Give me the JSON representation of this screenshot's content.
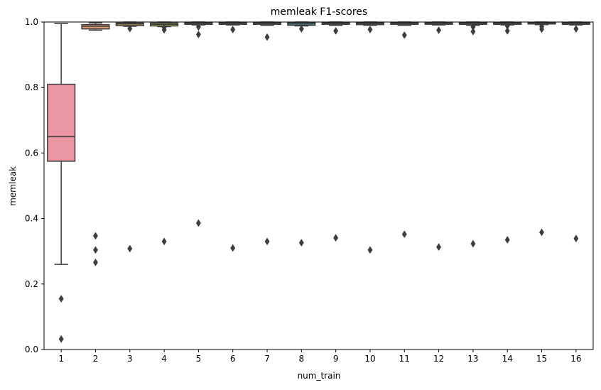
{
  "chart_data": {
    "type": "box",
    "title": "memleak F1-scores",
    "xlabel": "num_train",
    "ylabel": "memleak",
    "ylim": [
      0.0,
      1.0
    ],
    "yticks": [
      0.0,
      0.2,
      0.4,
      0.6,
      0.8,
      1.0
    ],
    "ytick_labels": [
      "0.0",
      "0.2",
      "0.4",
      "0.6",
      "0.8",
      "1.0"
    ],
    "categories": [
      "1",
      "2",
      "3",
      "4",
      "5",
      "6",
      "7",
      "8",
      "9",
      "10",
      "11",
      "12",
      "13",
      "14",
      "15",
      "16"
    ],
    "grid": false,
    "boxes": [
      {
        "category": "1",
        "q1": 0.575,
        "median": 0.65,
        "q3": 0.81,
        "whisker_low": 0.26,
        "whisker_high": 0.995,
        "outliers": [
          0.155,
          0.032
        ],
        "color": "#ea96a3"
      },
      {
        "category": "2",
        "q1": 0.979,
        "median": 0.987,
        "q3": 0.992,
        "whisker_low": 0.975,
        "whisker_high": 0.997,
        "outliers": [
          0.347,
          0.304,
          0.266
        ],
        "color": "#e29a6e"
      },
      {
        "category": "3",
        "q1": 0.989,
        "median": 0.994,
        "q3": 0.997,
        "whisker_low": 0.987,
        "whisker_high": 1.0,
        "outliers": [
          0.98,
          0.308
        ],
        "color": "#c8a54b"
      },
      {
        "category": "4",
        "q1": 0.988,
        "median": 0.993,
        "q3": 0.997,
        "whisker_low": 0.986,
        "whisker_high": 1.0,
        "outliers": [
          0.983,
          0.976,
          0.33
        ],
        "color": "#a8ad4c"
      },
      {
        "category": "5",
        "q1": 0.993,
        "median": 0.996,
        "q3": 0.999,
        "whisker_low": 0.991,
        "whisker_high": 1.0,
        "outliers": [
          0.985,
          0.962,
          0.386
        ],
        "color": "#7fb64f"
      },
      {
        "category": "6",
        "q1": 0.993,
        "median": 0.996,
        "q3": 0.999,
        "whisker_low": 0.991,
        "whisker_high": 1.0,
        "outliers": [
          0.977,
          0.31
        ],
        "color": "#52b98a"
      },
      {
        "category": "7",
        "q1": 0.993,
        "median": 0.996,
        "q3": 0.999,
        "whisker_low": 0.99,
        "whisker_high": 1.0,
        "outliers": [
          0.954,
          0.33
        ],
        "color": "#4db5a3"
      },
      {
        "category": "8",
        "q1": 0.99,
        "median": 0.994,
        "q3": 0.998,
        "whisker_low": 0.988,
        "whisker_high": 1.0,
        "outliers": [
          0.979,
          0.326
        ],
        "color": "#50b1b5"
      },
      {
        "category": "9",
        "q1": 0.993,
        "median": 0.996,
        "q3": 0.999,
        "whisker_low": 0.99,
        "whisker_high": 1.0,
        "outliers": [
          0.973,
          0.341
        ],
        "color": "#55adc6"
      },
      {
        "category": "10",
        "q1": 0.992,
        "median": 0.995,
        "q3": 0.998,
        "whisker_low": 0.99,
        "whisker_high": 1.0,
        "outliers": [
          0.977,
          0.304
        ],
        "color": "#65a6d8"
      },
      {
        "category": "11",
        "q1": 0.993,
        "median": 0.996,
        "q3": 0.999,
        "whisker_low": 0.99,
        "whisker_high": 1.0,
        "outliers": [
          0.96,
          0.352
        ],
        "color": "#8ea2e4"
      },
      {
        "category": "12",
        "q1": 0.993,
        "median": 0.996,
        "q3": 0.999,
        "whisker_low": 0.991,
        "whisker_high": 1.0,
        "outliers": [
          0.975,
          0.313
        ],
        "color": "#b298e4"
      },
      {
        "category": "13",
        "q1": 0.993,
        "median": 0.996,
        "q3": 0.999,
        "whisker_low": 0.99,
        "whisker_high": 1.0,
        "outliers": [
          0.985,
          0.971,
          0.323
        ],
        "color": "#d192e2"
      },
      {
        "category": "14",
        "q1": 0.993,
        "median": 0.996,
        "q3": 0.999,
        "whisker_low": 0.991,
        "whisker_high": 1.0,
        "outliers": [
          0.988,
          0.973,
          0.335
        ],
        "color": "#e68bd3"
      },
      {
        "category": "15",
        "q1": 0.994,
        "median": 0.997,
        "q3": 0.999,
        "whisker_low": 0.992,
        "whisker_high": 1.0,
        "outliers": [
          0.986,
          0.978,
          0.358
        ],
        "color": "#ec8fbb"
      },
      {
        "category": "16",
        "q1": 0.993,
        "median": 0.996,
        "q3": 0.999,
        "whisker_low": 0.991,
        "whisker_high": 1.0,
        "outliers": [
          0.979,
          0.339
        ],
        "color": "#ee94a8"
      }
    ]
  }
}
